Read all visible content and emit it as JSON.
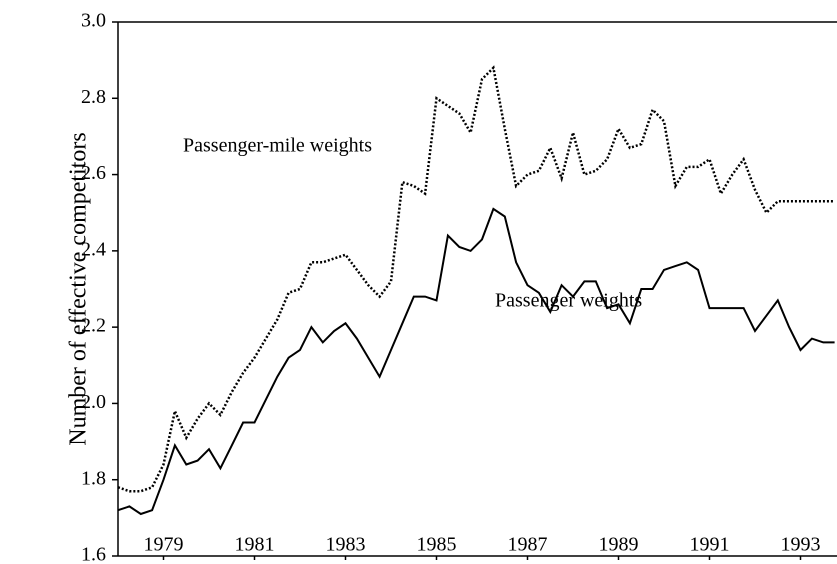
{
  "chart_data": {
    "type": "line",
    "y_label": "Number of effective competitors",
    "annotations": [
      "Passenger-mile weights",
      "Passenger weights"
    ],
    "x": [
      1978,
      1978.25,
      1978.5,
      1978.75,
      1979,
      1979.25,
      1979.5,
      1979.75,
      1980,
      1980.25,
      1980.5,
      1980.75,
      1981,
      1981.25,
      1981.5,
      1981.75,
      1982,
      1982.25,
      1982.5,
      1982.75,
      1983,
      1983.25,
      1983.5,
      1983.75,
      1984,
      1984.25,
      1984.5,
      1984.75,
      1985,
      1985.25,
      1985.5,
      1985.75,
      1986,
      1986.25,
      1986.5,
      1986.75,
      1987,
      1987.25,
      1987.5,
      1987.75,
      1988,
      1988.25,
      1988.5,
      1988.75,
      1989,
      1989.25,
      1989.5,
      1989.75,
      1990,
      1990.25,
      1990.5,
      1990.75,
      1991,
      1991.25,
      1991.5,
      1991.75,
      1992,
      1992.25,
      1992.5,
      1992.75,
      1993,
      1993.25,
      1993.5,
      1993.75
    ],
    "series": [
      {
        "name": "Passenger-mile weights",
        "color": "#000000",
        "dash": "dotted",
        "values": [
          1.78,
          1.77,
          1.77,
          1.78,
          1.84,
          1.98,
          1.91,
          1.96,
          2.0,
          1.97,
          2.03,
          2.08,
          2.12,
          2.17,
          2.22,
          2.29,
          2.3,
          2.37,
          2.37,
          2.38,
          2.39,
          2.35,
          2.31,
          2.28,
          2.32,
          2.58,
          2.57,
          2.55,
          2.8,
          2.78,
          2.76,
          2.71,
          2.85,
          2.88,
          2.72,
          2.57,
          2.6,
          2.61,
          2.67,
          2.59,
          2.71,
          2.6,
          2.61,
          2.64,
          2.72,
          2.67,
          2.68,
          2.77,
          2.74,
          2.57,
          2.62,
          2.62,
          2.64,
          2.55,
          2.6,
          2.64,
          2.56,
          2.5,
          2.53,
          2.53,
          2.53,
          2.53,
          2.53,
          2.53
        ]
      },
      {
        "name": "Passenger weights",
        "color": "#000000",
        "dash": "solid",
        "values": [
          1.72,
          1.73,
          1.71,
          1.72,
          1.8,
          1.89,
          1.84,
          1.85,
          1.88,
          1.83,
          1.89,
          1.95,
          1.95,
          2.01,
          2.07,
          2.12,
          2.14,
          2.2,
          2.16,
          2.19,
          2.21,
          2.17,
          2.12,
          2.07,
          2.14,
          2.21,
          2.28,
          2.28,
          2.27,
          2.44,
          2.41,
          2.4,
          2.43,
          2.51,
          2.49,
          2.37,
          2.31,
          2.29,
          2.24,
          2.31,
          2.28,
          2.32,
          2.32,
          2.25,
          2.26,
          2.21,
          2.3,
          2.3,
          2.35,
          2.36,
          2.37,
          2.35,
          2.25,
          2.25,
          2.25,
          2.25,
          2.19,
          2.23,
          2.27,
          2.2,
          2.14,
          2.17,
          2.16,
          2.16
        ]
      }
    ],
    "xlim": [
      1978,
      1994
    ],
    "xticks": [
      1979,
      1981,
      1983,
      1985,
      1987,
      1989,
      1991,
      1993
    ],
    "ylim": [
      1.6,
      3.0
    ],
    "yticks": [
      {
        "value": 1.6,
        "label": "1.6"
      },
      {
        "value": 1.8,
        "label": "1.8"
      },
      {
        "value": 2.0,
        "label": "2.0"
      },
      {
        "value": 2.2,
        "label": "2.2"
      },
      {
        "value": 2.4,
        "label": "2.4"
      },
      {
        "value": 2.6,
        "label": "2.6"
      },
      {
        "value": 2.8,
        "label": "2.8"
      },
      {
        "value": 3.0,
        "label": "3.0"
      }
    ],
    "grid": false,
    "legend": false
  }
}
